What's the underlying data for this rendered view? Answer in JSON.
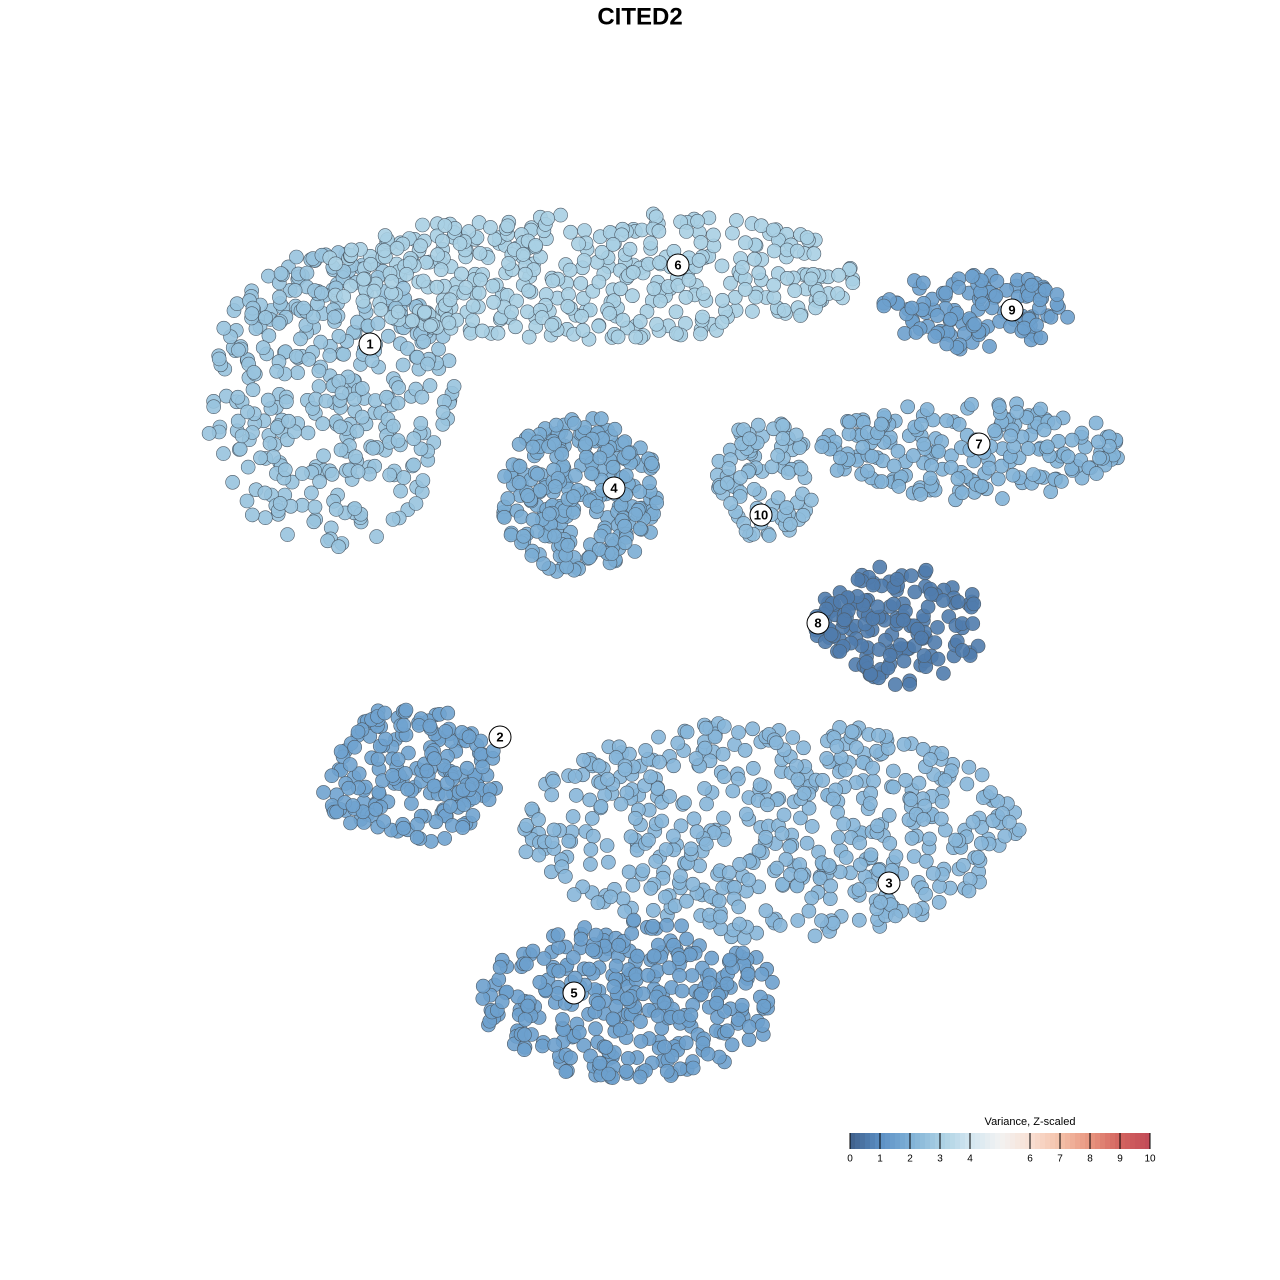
{
  "chart_data": {
    "type": "scatter",
    "title": "CITED2",
    "clusters": [
      "1",
      "2",
      "3",
      "4",
      "5",
      "6",
      "7",
      "8",
      "9",
      "10"
    ],
    "values": [
      2.6,
      1.6,
      2.2,
      1.9,
      1.5,
      3.0,
      2.1,
      0.6,
      1.5,
      2.4
    ],
    "colorbar": {
      "title": "Variance, Z-scaled",
      "lim": [
        0,
        10
      ],
      "ticks": [
        0,
        1,
        2,
        3,
        4,
        6,
        7,
        8,
        9,
        10
      ],
      "colors": [
        "#3f5f8a",
        "#5b8fc4",
        "#7eb0d6",
        "#a9cfe3",
        "#d2e6f0",
        "#f2f2f2",
        "#f9e0d4",
        "#f4c1a9",
        "#e8957f",
        "#d3645f",
        "#c24a57"
      ]
    }
  }
}
